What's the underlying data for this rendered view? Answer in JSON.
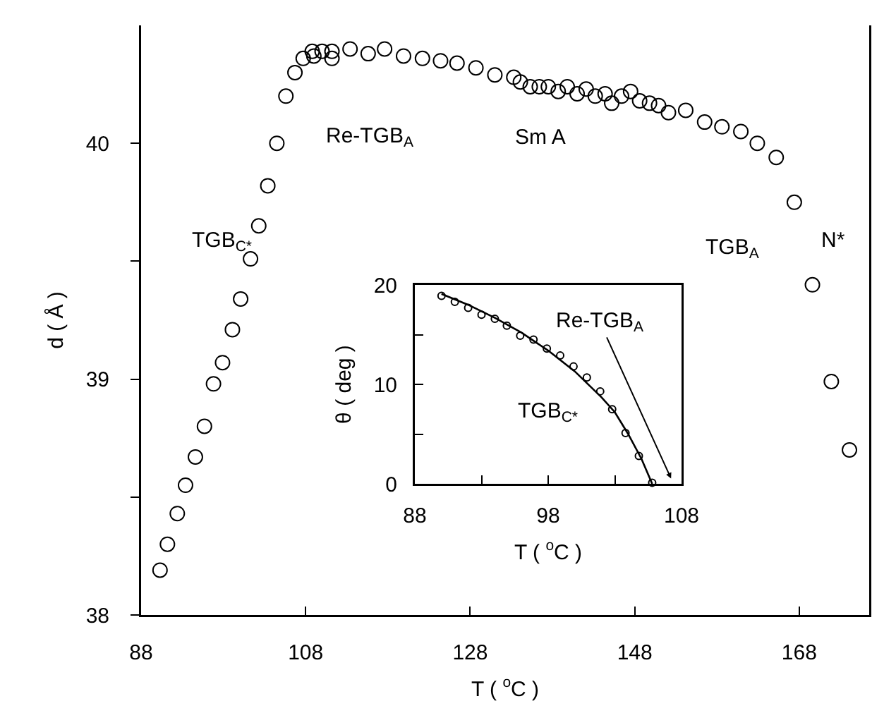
{
  "chart_data": [
    {
      "type": "scatter",
      "xlabel": "T ( $^{o}$C )",
      "ylabel": "d ( Å )",
      "marker": "circle",
      "color": "#000000",
      "grid": false,
      "x": [
        90.3,
        91.2,
        92.4,
        93.4,
        94.6,
        95.7,
        96.8,
        97.9,
        99.1,
        100.1,
        101.3,
        102.3,
        103.4,
        104.5,
        105.6,
        106.7,
        107.7,
        108.8,
        109.0,
        110.0,
        111.2,
        111.2,
        113.4,
        115.6,
        117.6,
        119.9,
        122.2,
        124.4,
        126.4,
        128.7,
        131.0,
        133.3,
        134.1,
        135.3,
        136.4,
        137.5,
        138.7,
        139.8,
        141.0,
        142.1,
        143.2,
        144.4,
        145.2,
        146.4,
        147.5,
        148.6,
        149.8,
        150.9,
        152.1,
        154.2,
        156.5,
        158.6,
        160.9,
        162.9,
        165.2,
        167.4,
        169.6,
        171.9,
        174.1
      ],
      "values": [
        38.19,
        38.3,
        38.43,
        38.55,
        38.67,
        38.8,
        38.98,
        39.07,
        39.21,
        39.34,
        39.51,
        39.65,
        39.82,
        40.0,
        40.2,
        40.3,
        40.36,
        40.39,
        40.37,
        40.39,
        40.39,
        40.36,
        40.4,
        40.38,
        40.4,
        40.37,
        40.36,
        40.35,
        40.34,
        40.32,
        40.29,
        40.28,
        40.26,
        40.24,
        40.24,
        40.24,
        40.22,
        40.24,
        40.21,
        40.23,
        40.2,
        40.21,
        40.17,
        40.2,
        40.22,
        40.18,
        40.17,
        40.16,
        40.13,
        40.14,
        40.09,
        40.07,
        40.05,
        40.0,
        39.94,
        39.75,
        39.4,
        38.99,
        38.7
      ],
      "xlim": [
        88,
        176.5
      ],
      "ylim": [
        38,
        40.5
      ],
      "xticks": [
        88,
        108,
        128,
        148,
        168
      ],
      "yticks": [
        38,
        {
          "value": 38.5,
          "label": null
        },
        39,
        {
          "value": 39.5,
          "label": null
        },
        40
      ],
      "annotations": [
        "TGB$_{C*}$",
        "Re-TGB$_{A}$",
        "Sm A",
        "TGB$_{A}$",
        "N*"
      ]
    },
    {
      "type": "scatter",
      "xlabel": "T ( $^{o}$C )",
      "ylabel": "θ ( deg )",
      "grid": false,
      "series": [
        {
          "type": "scatter",
          "marker": "circle",
          "color": "#000000",
          "x": [
            90.0,
            91.0,
            92.0,
            93.0,
            94.0,
            94.9,
            95.9,
            96.9,
            97.9,
            98.9,
            99.9,
            100.9,
            101.9,
            102.8,
            103.8,
            104.8,
            105.8
          ],
          "values": [
            18.9,
            18.3,
            17.7,
            17.0,
            16.6,
            15.9,
            14.9,
            14.5,
            13.6,
            12.9,
            11.8,
            10.7,
            9.3,
            7.5,
            5.1,
            2.8,
            0.1
          ]
        },
        {
          "type": "line",
          "marker": "none",
          "line_style": "solid",
          "color": "#000000",
          "x": [
            90,
            92,
            94,
            96,
            98,
            100,
            102,
            103,
            104,
            105,
            105.8
          ],
          "values": [
            19.1,
            18.0,
            16.7,
            15.2,
            13.4,
            11.3,
            8.7,
            7.2,
            5.0,
            2.5,
            0
          ]
        }
      ],
      "xlim": [
        88,
        108
      ],
      "ylim": [
        0,
        20
      ],
      "xticks": [
        88,
        {
          "value": 93,
          "label": null
        },
        98,
        {
          "value": 103,
          "label": null
        },
        108
      ],
      "yticks": [
        0,
        {
          "value": 5,
          "label": null
        },
        10,
        {
          "value": 15,
          "label": null
        },
        20
      ],
      "annotations": [
        "Re-TGB$_{A}$",
        "TGB$_{C*}$"
      ]
    }
  ]
}
